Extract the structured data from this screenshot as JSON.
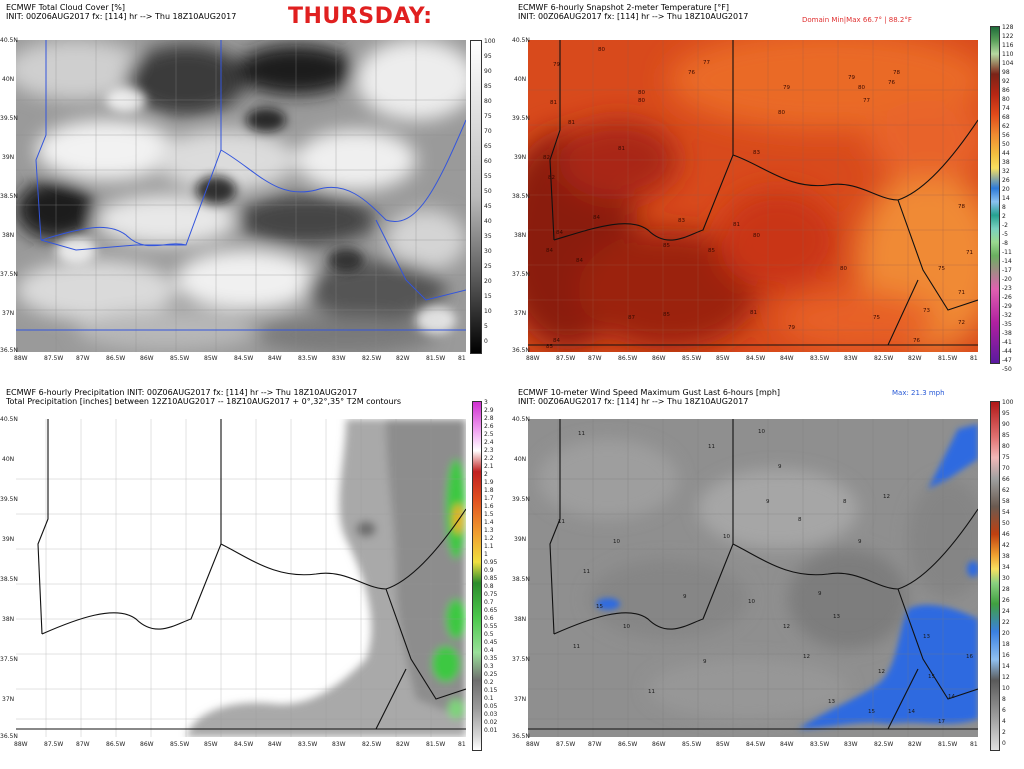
{
  "title_overlay": "THURSDAY:",
  "panels": [
    {
      "id": "cloud",
      "line1": "ECMWF Total Cloud Cover [%]",
      "line2": "INIT: 00Z06AUG2017 fx: [114] hr --> Thu 18Z10AUG2017",
      "lat_labels": [
        "40.5N",
        "40N",
        "39.5N",
        "39N",
        "38.5N",
        "38N",
        "37.5N",
        "37N",
        "36.5N"
      ],
      "lon_labels": [
        "88W",
        "87.5W",
        "87W",
        "86.5W",
        "86W",
        "85.5W",
        "85W",
        "84.5W",
        "84W",
        "83.5W",
        "83W",
        "82.5W",
        "82W",
        "81.5W",
        "81"
      ],
      "colorbar": [
        "100",
        "95",
        "90",
        "85",
        "80",
        "75",
        "70",
        "65",
        "60",
        "55",
        "50",
        "45",
        "40",
        "35",
        "30",
        "25",
        "20",
        "15",
        "10",
        "5",
        "0"
      ]
    },
    {
      "id": "temp",
      "line1": "ECMWF 6-hourly Snapshot 2-meter Temperature [°F]",
      "line2": "INIT: 00Z06AUG2017 fx: [114] hr --> Thu 18Z10AUG2017",
      "domain_note": "Domain Min|Max 66.7° | 88.2°F",
      "lat_labels": [
        "40.5N",
        "40N",
        "39.5N",
        "39N",
        "38.5N",
        "38N",
        "37.5N",
        "37N",
        "36.5N"
      ],
      "lon_labels": [
        "88W",
        "87.5W",
        "87W",
        "86.5W",
        "86W",
        "85.5W",
        "85W",
        "84.5W",
        "84W",
        "83.5W",
        "83W",
        "82.5W",
        "82W",
        "81.5W",
        "81"
      ],
      "colorbar": [
        "128",
        "122",
        "116",
        "110",
        "104",
        "98",
        "92",
        "86",
        "80",
        "74",
        "68",
        "62",
        "56",
        "50",
        "44",
        "38",
        "32",
        "26",
        "20",
        "14",
        "8",
        "2",
        "-2",
        "-5",
        "-8",
        "-11",
        "-14",
        "-17",
        "-20",
        "-23",
        "-26",
        "-29",
        "-32",
        "-35",
        "-38",
        "-41",
        "-44",
        "-47",
        "-50"
      ],
      "values": [
        "80",
        "77",
        "76",
        "79",
        "80",
        "80",
        "76",
        "79",
        "81",
        "79",
        "78",
        "80",
        "80",
        "77",
        "81",
        "81",
        "82",
        "83",
        "82",
        "84",
        "83",
        "85",
        "84",
        "81",
        "80",
        "84",
        "84",
        "85",
        "80",
        "78",
        "75",
        "71",
        "71",
        "87",
        "85",
        "81",
        "79",
        "75",
        "73",
        "72",
        "84",
        "85",
        "76"
      ]
    },
    {
      "id": "precip",
      "line1": "ECMWF 6-hourly Precipitation INIT: 00Z06AUG2017 fx: [114] hr --> Thu 18Z10AUG2017",
      "line2": "Total Precipitation [inches] between 12Z10AUG2017 -- 18Z10AUG2017 + 0°,32°,35° T2M contours",
      "lat_labels": [
        "40.5N",
        "40N",
        "39.5N",
        "39N",
        "38.5N",
        "38N",
        "37.5N",
        "37N",
        "36.5N"
      ],
      "lon_labels": [
        "88W",
        "87.5W",
        "87W",
        "86.5W",
        "86W",
        "85.5W",
        "85W",
        "84.5W",
        "84W",
        "83.5W",
        "83W",
        "82.5W",
        "82W",
        "81.5W",
        "81"
      ],
      "colorbar": [
        "3",
        "2.9",
        "2.8",
        "2.6",
        "2.5",
        "2.4",
        "2.3",
        "2.2",
        "2.1",
        "2",
        "1.9",
        "1.8",
        "1.7",
        "1.6",
        "1.5",
        "1.4",
        "1.3",
        "1.2",
        "1.1",
        "1",
        "0.95",
        "0.9",
        "0.85",
        "0.8",
        "0.75",
        "0.7",
        "0.65",
        "0.6",
        "0.55",
        "0.5",
        "0.45",
        "0.4",
        "0.35",
        "0.3",
        "0.25",
        "0.2",
        "0.15",
        "0.1",
        "0.05",
        "0.03",
        "0.02",
        "0.01"
      ]
    },
    {
      "id": "wind",
      "line1": "ECMWF 10-meter Wind Speed Maximum Gust Last 6-hours [mph]",
      "line2": "INIT: 00Z06AUG2017 fx: [114] hr --> Thu 18Z10AUG2017",
      "domain_note": "Max: 21.3 mph",
      "lat_labels": [
        "40.5N",
        "40N",
        "39.5N",
        "39N",
        "38.5N",
        "38N",
        "37.5N",
        "37N",
        "36.5N"
      ],
      "lon_labels": [
        "88W",
        "87.5W",
        "87W",
        "86.5W",
        "86W",
        "85.5W",
        "85W",
        "84.5W",
        "84W",
        "83.5W",
        "83W",
        "82.5W",
        "82W",
        "81.5W",
        "81"
      ],
      "colorbar": [
        "100",
        "95",
        "90",
        "85",
        "80",
        "75",
        "70",
        "66",
        "62",
        "58",
        "54",
        "50",
        "46",
        "42",
        "38",
        "34",
        "30",
        "28",
        "26",
        "24",
        "22",
        "20",
        "18",
        "16",
        "14",
        "12",
        "10",
        "8",
        "6",
        "4",
        "2",
        "0"
      ],
      "values": [
        "11",
        "10",
        "11",
        "9",
        "10",
        "9",
        "8",
        "12",
        "8",
        "11",
        "11",
        "10",
        "9",
        "9",
        "10",
        "9",
        "10",
        "12",
        "11",
        "15",
        "12",
        "13",
        "9",
        "12",
        "11",
        "13",
        "15",
        "14",
        "16",
        "14",
        "15",
        "17",
        "13"
      ]
    }
  ],
  "colors": {
    "state_border": "#111111",
    "county_border": "#8a8a8a",
    "cloud_border": "#3355dd",
    "temp_dark": "#8a1a0e",
    "temp_mid": "#c93418",
    "temp_light": "#e85b1f",
    "precip_gray": "#a9a9a9",
    "precip_green": "#3ec843",
    "wind_gray": "#8f8f8f",
    "wind_blue": "#2d6be0"
  }
}
